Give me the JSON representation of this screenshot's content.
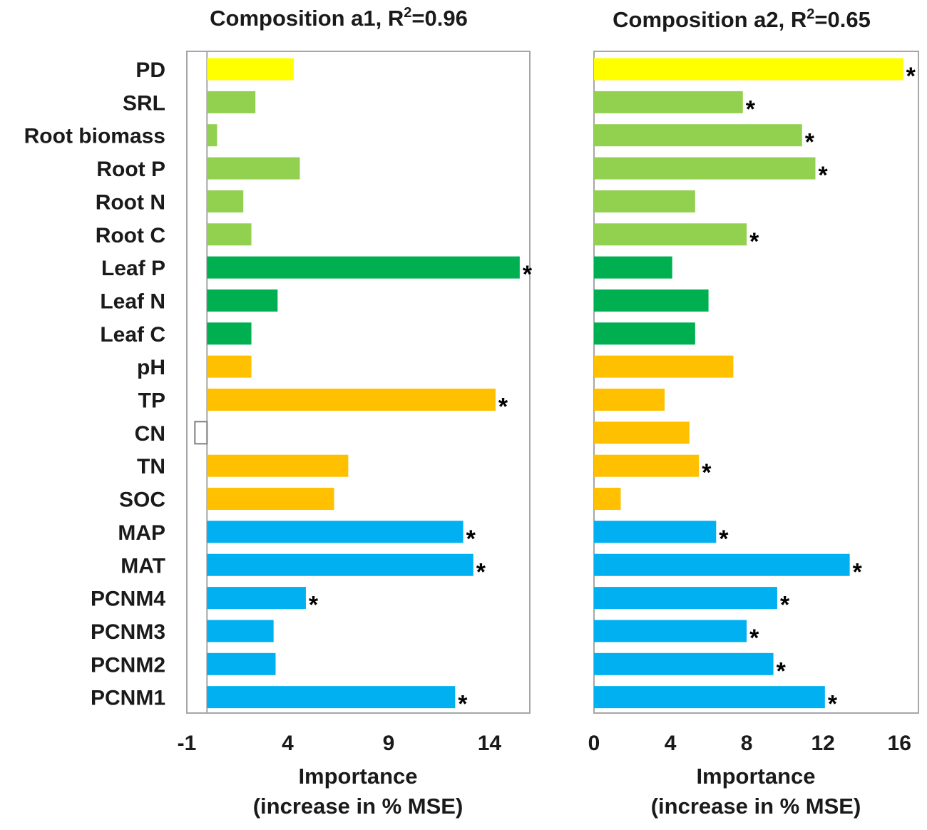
{
  "chart_data": [
    {
      "type": "bar",
      "orientation": "horizontal",
      "title": "Composition  a1, R",
      "title_sup": "2",
      "title_suffix": "=0.96",
      "xlabel_line1": "Importance",
      "xlabel_line2": "(increase in % MSE)",
      "xlim": [
        -1,
        16
      ],
      "xticks": [
        -1,
        4,
        9,
        14
      ],
      "categories": [
        "PD",
        "SRL",
        "Root biomass",
        "Root P",
        "Root N",
        "Root C",
        "Leaf P",
        "Leaf N",
        "Leaf C",
        "pH",
        "TP",
        "CN",
        "TN",
        "SOC",
        "MAP",
        "MAT",
        "PCNM4",
        "PCNM3",
        "PCNM2",
        "PCNM1"
      ],
      "values": [
        4.3,
        2.4,
        0.5,
        4.6,
        1.8,
        2.2,
        15.5,
        3.5,
        2.2,
        2.2,
        14.3,
        -0.6,
        7.0,
        6.3,
        12.7,
        13.2,
        4.9,
        3.3,
        3.4,
        12.3
      ],
      "significant": [
        false,
        false,
        false,
        false,
        false,
        false,
        true,
        false,
        false,
        false,
        true,
        false,
        false,
        false,
        true,
        true,
        true,
        false,
        false,
        true
      ],
      "colors": [
        "#ffff00",
        "#92d050",
        "#92d050",
        "#92d050",
        "#92d050",
        "#92d050",
        "#00b050",
        "#00b050",
        "#00b050",
        "#ffc000",
        "#ffc000",
        "#ffc000",
        "#ffc000",
        "#ffc000",
        "#00b0f0",
        "#00b0f0",
        "#00b0f0",
        "#00b0f0",
        "#00b0f0",
        "#00b0f0"
      ],
      "negative_fill": "#ffffff"
    },
    {
      "type": "bar",
      "orientation": "horizontal",
      "title": "Composition  a2, R",
      "title_sup": "2",
      "title_suffix": "=0.65",
      "xlabel_line1": "Importance",
      "xlabel_line2": "(increase in % MSE)",
      "xlim": [
        0,
        17
      ],
      "xticks": [
        0,
        4,
        8,
        12,
        16
      ],
      "categories": [
        "PD",
        "SRL",
        "Root biomass",
        "Root P",
        "Root N",
        "Root C",
        "Leaf P",
        "Leaf N",
        "Leaf C",
        "pH",
        "TP",
        "CN",
        "TN",
        "SOC",
        "MAP",
        "MAT",
        "PCNM4",
        "PCNM3",
        "PCNM2",
        "PCNM1"
      ],
      "values": [
        16.2,
        7.8,
        10.9,
        11.6,
        5.3,
        8.0,
        4.1,
        6.0,
        5.3,
        7.3,
        3.7,
        5.0,
        5.5,
        1.4,
        6.4,
        13.4,
        9.6,
        8.0,
        9.4,
        12.1
      ],
      "significant": [
        true,
        true,
        true,
        true,
        false,
        true,
        false,
        false,
        false,
        false,
        false,
        false,
        true,
        false,
        true,
        true,
        true,
        true,
        true,
        true
      ],
      "colors": [
        "#ffff00",
        "#92d050",
        "#92d050",
        "#92d050",
        "#92d050",
        "#92d050",
        "#00b050",
        "#00b050",
        "#00b050",
        "#ffc000",
        "#ffc000",
        "#ffc000",
        "#ffc000",
        "#ffc000",
        "#00b0f0",
        "#00b0f0",
        "#00b0f0",
        "#00b0f0",
        "#00b0f0",
        "#00b0f0"
      ],
      "negative_fill": "#ffffff"
    }
  ],
  "star_symbol": "*"
}
